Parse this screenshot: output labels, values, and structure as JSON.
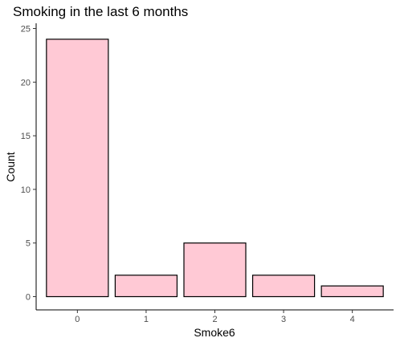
{
  "chart_data": {
    "type": "bar",
    "title": "Smoking in the last 6 months",
    "xlabel": "Smoke6",
    "ylabel": "Count",
    "categories": [
      "0",
      "1",
      "2",
      "3",
      "4"
    ],
    "values": [
      24,
      2,
      5,
      2,
      1
    ],
    "ylim": [
      0,
      25
    ],
    "yticks": [
      "0",
      "5",
      "10",
      "15",
      "20",
      "25"
    ],
    "grid": false,
    "bar_fill": "#ffc9d5",
    "bar_stroke": "#000000"
  }
}
